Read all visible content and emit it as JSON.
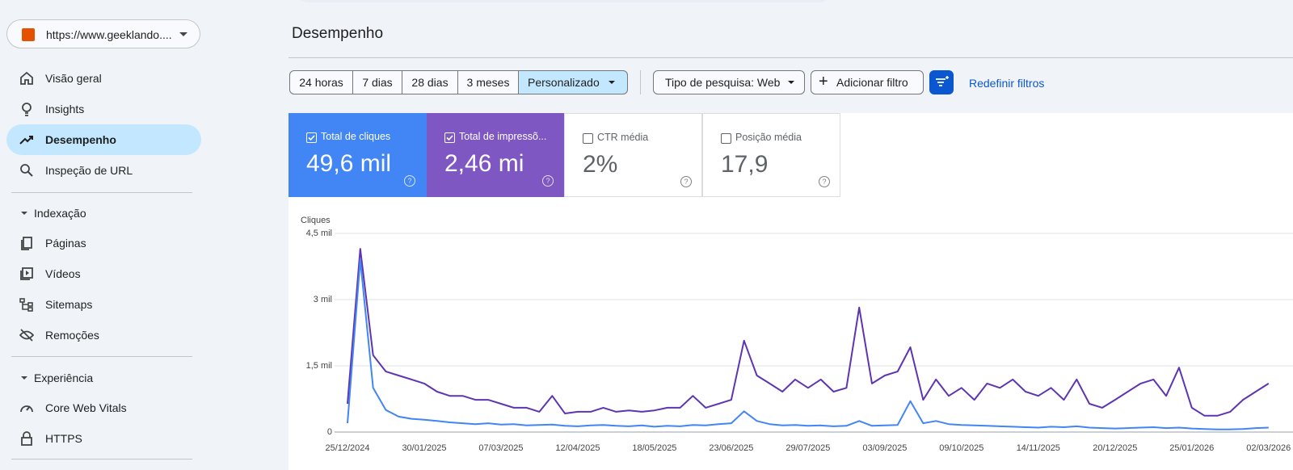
{
  "sidebar": {
    "property": "https://www.geeklando....",
    "nav": [
      "Visão geral",
      "Insights",
      "Desempenho",
      "Inspeção de URL"
    ],
    "sections": [
      {
        "title": "Indexação",
        "items": [
          "Páginas",
          "Vídeos",
          "Sitemaps",
          "Remoções"
        ]
      },
      {
        "title": "Experiência",
        "items": [
          "Core Web Vitals",
          "HTTPS"
        ]
      }
    ]
  },
  "header": {
    "title": "Desempenho"
  },
  "filters": {
    "dates": [
      "24 horas",
      "7 dias",
      "28 dias",
      "3 meses",
      "Personalizado"
    ],
    "search_type": "Tipo de pesquisa: Web",
    "add_filter": "Adicionar filtro",
    "reset": "Redefinir filtros"
  },
  "metrics": [
    {
      "value": "49,6 mil",
      "selected": true
    },
    {
      "value": "2,46 mi",
      "selected": true
    },
    {
      "label": "CTR média",
      "value": "2%",
      "selected": false
    },
    {
      "label": "Posição média",
      "value": "17,9",
      "selected": false
    }
  ],
  "chart_data": {
    "type": "line",
    "y_label": "Cliques",
    "categories": [
      "25/12/2024",
      null,
      null,
      null,
      null,
      null,
      "30/01/2025",
      null,
      null,
      null,
      null,
      null,
      "07/03/2025",
      null,
      null,
      null,
      null,
      null,
      "12/04/2025",
      null,
      null,
      null,
      null,
      null,
      "18/05/2025",
      null,
      null,
      null,
      null,
      null,
      "23/06/2025",
      null,
      null,
      null,
      null,
      null,
      "29/07/2025",
      null,
      null,
      null,
      null,
      null,
      "03/09/2025",
      null,
      null,
      null,
      null,
      null,
      "09/10/2025",
      null,
      null,
      null,
      null,
      null,
      "14/11/2025",
      null,
      null,
      null,
      null,
      null,
      "20/12/2025",
      null,
      null,
      null,
      null,
      null,
      "25/01/2026",
      null,
      null,
      null,
      null,
      null,
      "02/03/2026"
    ],
    "ylim": [
      0,
      4500
    ],
    "yticks": [
      0,
      {
        "value": 1500,
        "label": "1,5 mil"
      },
      {
        "value": 3000,
        "label": "3 mil"
      },
      {
        "value": 4500,
        "label": "4,5 mil"
      }
    ],
    "grid": true,
    "series": [
      {
        "name": "Total de cliques",
        "color": "#4285f4",
        "values": [
          200,
          3900,
          1000,
          500,
          350,
          300,
          280,
          250,
          220,
          200,
          180,
          200,
          170,
          180,
          150,
          160,
          170,
          140,
          130,
          150,
          160,
          140,
          130,
          150,
          120,
          140,
          130,
          160,
          150,
          180,
          200,
          470,
          250,
          180,
          150,
          160,
          140,
          150,
          130,
          140,
          250,
          140,
          150,
          160,
          700,
          200,
          250,
          180,
          160,
          150,
          140,
          130,
          120,
          110,
          100,
          120,
          110,
          130,
          100,
          90,
          80,
          90,
          100,
          110,
          90,
          100,
          80,
          70,
          60,
          60,
          70,
          90,
          100
        ]
      },
      {
        "name": "Total de impressõ...",
        "color": "#5e35b1",
        "values": [
          640,
          4150,
          1740,
          1370,
          1280,
          1190,
          1100,
          915,
          820,
          820,
          730,
          730,
          640,
          550,
          550,
          460,
          820,
          420,
          460,
          460,
          550,
          460,
          490,
          460,
          490,
          550,
          550,
          820,
          550,
          640,
          730,
          2070,
          1280,
          1100,
          915,
          1190,
          1000,
          1190,
          915,
          1000,
          2820,
          1100,
          1280,
          1370,
          1920,
          730,
          1190,
          820,
          1000,
          730,
          1100,
          1000,
          1190,
          915,
          820,
          1000,
          730,
          1190,
          640,
          550,
          730,
          915,
          1100,
          1190,
          820,
          1460,
          550,
          370,
          370,
          460,
          730,
          915,
          1100
        ]
      }
    ]
  }
}
